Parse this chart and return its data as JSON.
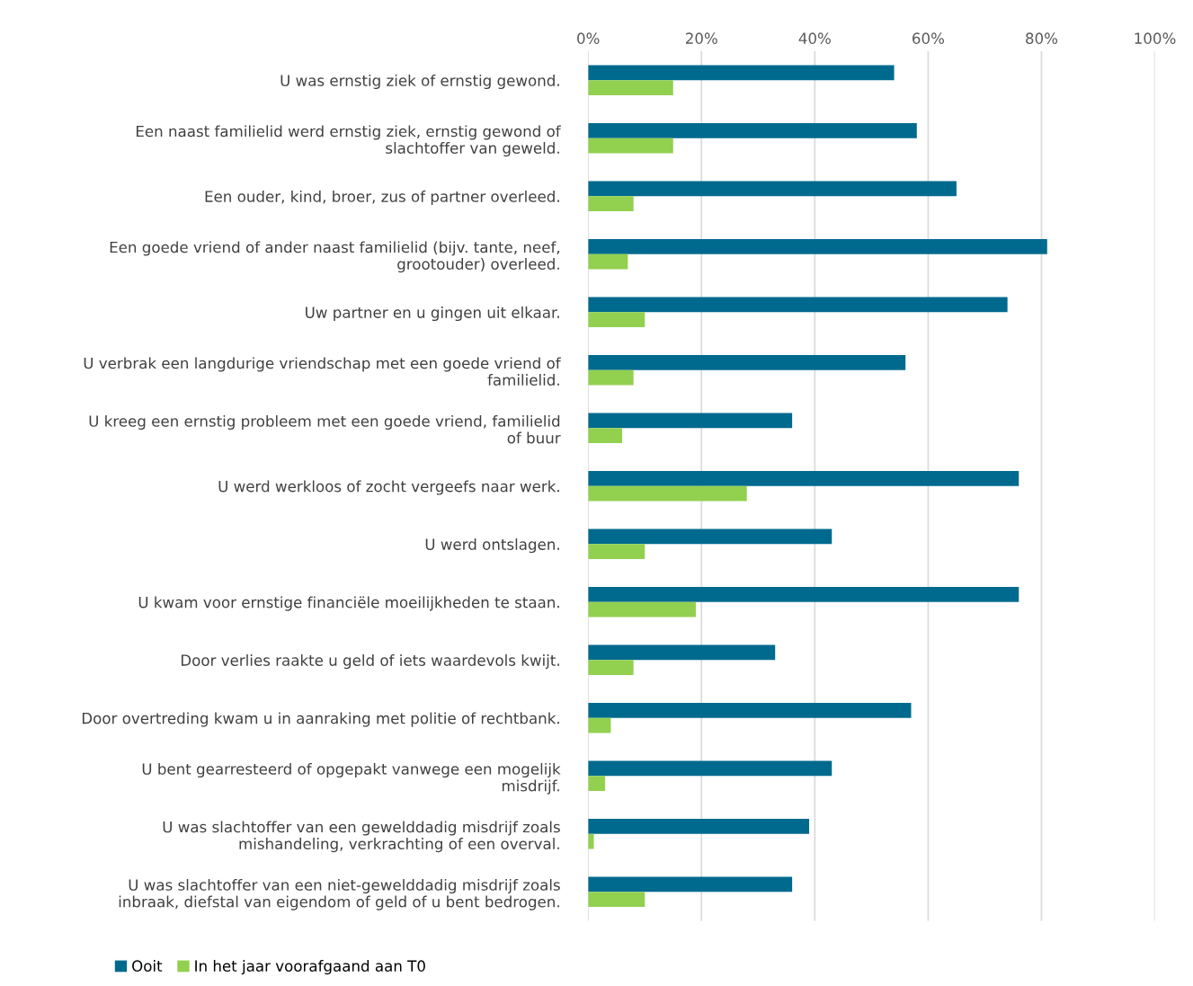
{
  "chart_data": {
    "type": "bar",
    "orientation": "horizontal",
    "categories": [
      "U was ernstig ziek of ernstig gewond.",
      "Een naast familielid werd ernstig ziek, ernstig gewond of\nslachtoffer van geweld.",
      "Een ouder, kind, broer, zus of partner overleed.",
      "Een goede vriend of ander naast familielid (bijv. tante, neef,\ngrootouder) overleed.",
      "Uw partner en u gingen uit elkaar.",
      "U verbrak een langdurige vriendschap met een goede vriend of\nfamilielid.",
      "U kreeg een ernstig probleem met een goede vriend, familielid\nof buur",
      "U werd werkloos of zocht vergeefs naar werk.",
      "U werd ontslagen.",
      "U kwam voor ernstige financiële moeilijkheden te staan.",
      "Door verlies raakte u geld of iets waardevols kwijt.",
      "Door overtreding kwam u in aanraking met politie of rechtbank.",
      "U bent gearresteerd of opgepakt vanwege een mogelijk\nmisdrijf.",
      "U was slachtoffer van een gewelddadig misdrijf zoals\nmishandeling, verkrachting of een overval.",
      "U was slachtoffer van een niet-gewelddadig misdrijf zoals\ninbraak, diefstal van eigendom of geld of u bent bedrogen."
    ],
    "series": [
      {
        "name": "Ooit",
        "color": "#006a8e",
        "values": [
          54,
          58,
          65,
          81,
          74,
          56,
          36,
          76,
          43,
          76,
          33,
          57,
          43,
          39,
          36
        ]
      },
      {
        "name": "In het jaar voorafgaand aan T0",
        "color": "#92d050",
        "values": [
          15,
          15,
          8,
          7,
          10,
          8,
          6,
          28,
          10,
          19,
          8,
          4,
          3,
          1,
          10
        ]
      }
    ],
    "xlim": [
      0,
      100
    ],
    "xticks": [
      {
        "value": 0,
        "label": "0%"
      },
      {
        "value": 20,
        "label": "20%"
      },
      {
        "value": 40,
        "label": "40%"
      },
      {
        "value": 60,
        "label": "60%"
      },
      {
        "value": 80,
        "label": "80%"
      },
      {
        "value": 100,
        "label": "100%"
      }
    ],
    "grid": "x",
    "legend": "bottom left"
  }
}
